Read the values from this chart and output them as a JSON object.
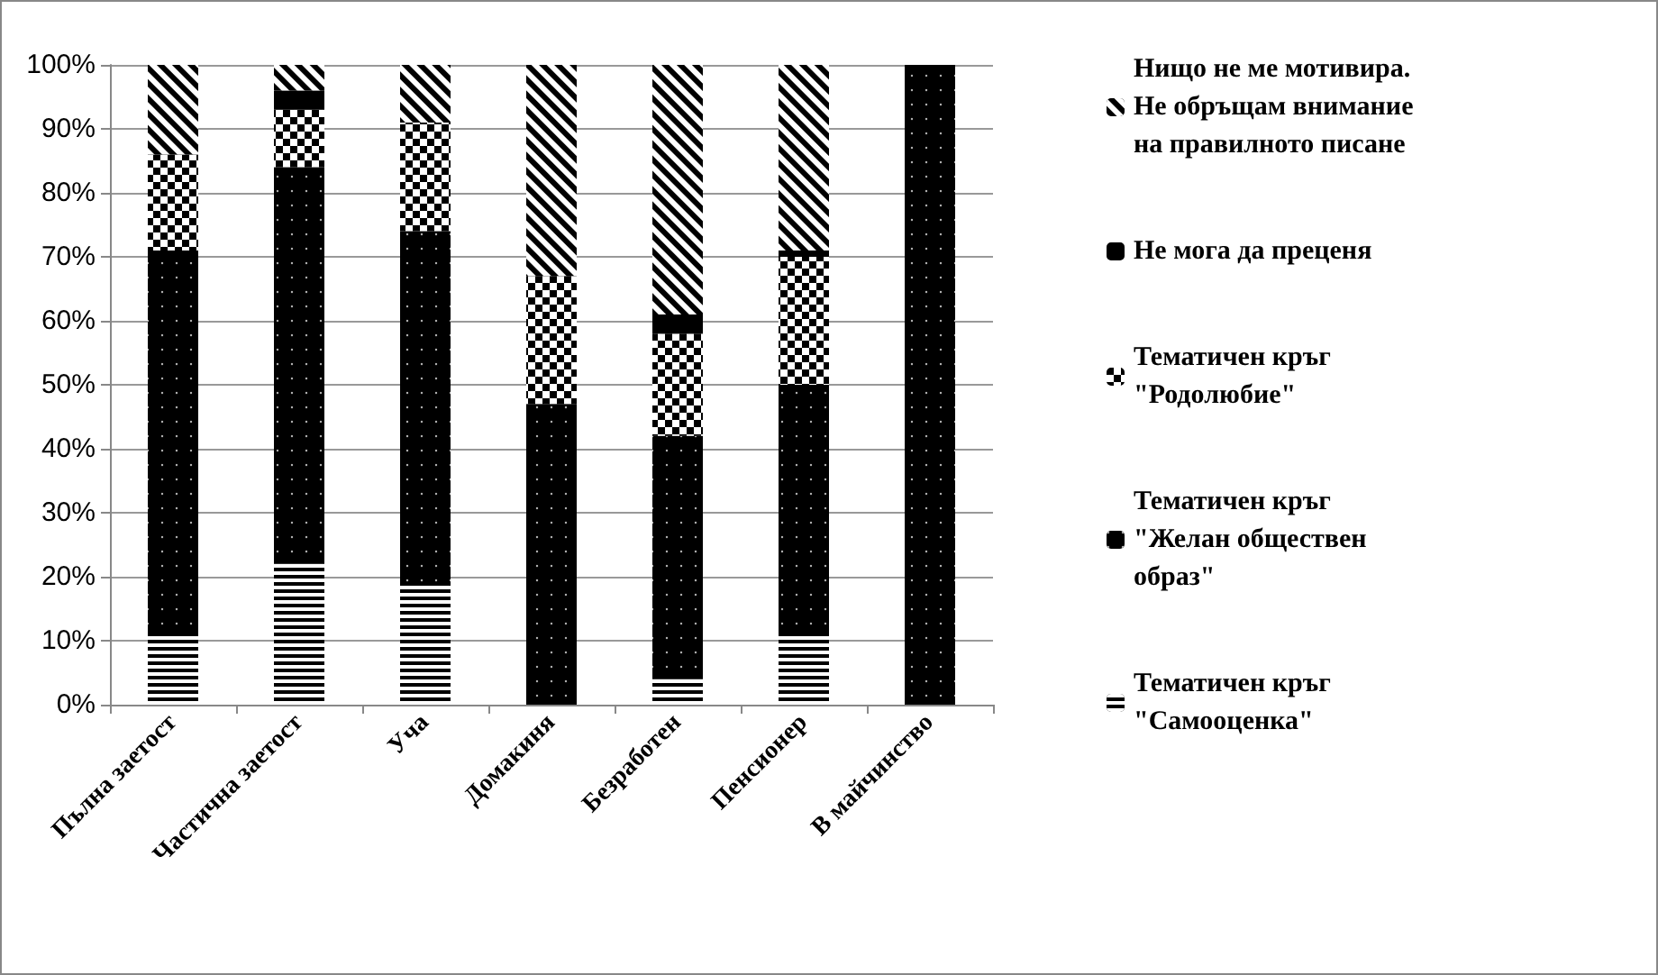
{
  "chart_data": {
    "type": "bar",
    "stacked": true,
    "categories": [
      "Пълна заетост",
      "Частична заетост",
      "Уча",
      "Домакиня",
      "Безработен",
      "Пенсионер",
      "В майчинство"
    ],
    "series": [
      {
        "name": "Тематичен кръг \"Самооценка\"",
        "color": "#000000",
        "values": [
          11,
          22,
          19,
          0,
          4,
          11,
          0
        ]
      },
      {
        "name": "Тематичен кръг \"Желан обществен образ\"",
        "color": "#000000",
        "values": [
          60,
          62,
          55,
          47,
          38,
          39,
          100
        ]
      },
      {
        "name": "Тематичен кръг \"Родолюбие\"",
        "color": "#000000",
        "values": [
          15,
          9,
          17,
          20,
          16,
          20,
          0
        ]
      },
      {
        "name": "Не мога да преценя",
        "color": "#000000",
        "values": [
          0,
          3,
          0,
          0,
          3,
          1,
          0
        ]
      },
      {
        "name": "Нищо не ме мотивира. Не обръщам внимание на правилното писане",
        "color": "#000000",
        "values": [
          14,
          4,
          9,
          33,
          39,
          29,
          0
        ]
      }
    ],
    "ylim": [
      0,
      100
    ],
    "yticks": [
      {
        "value": 0,
        "label": "0%"
      },
      {
        "value": 10,
        "label": "10%"
      },
      {
        "value": 20,
        "label": "20%"
      },
      {
        "value": 30,
        "label": "30%"
      },
      {
        "value": 40,
        "label": "40%"
      },
      {
        "value": 50,
        "label": "50%"
      },
      {
        "value": 60,
        "label": "60%"
      },
      {
        "value": 70,
        "label": "70%"
      },
      {
        "value": 80,
        "label": "80%"
      },
      {
        "value": 90,
        "label": "90%"
      },
      {
        "value": 100,
        "label": "100%"
      }
    ],
    "grid": "y",
    "legend": "right"
  }
}
